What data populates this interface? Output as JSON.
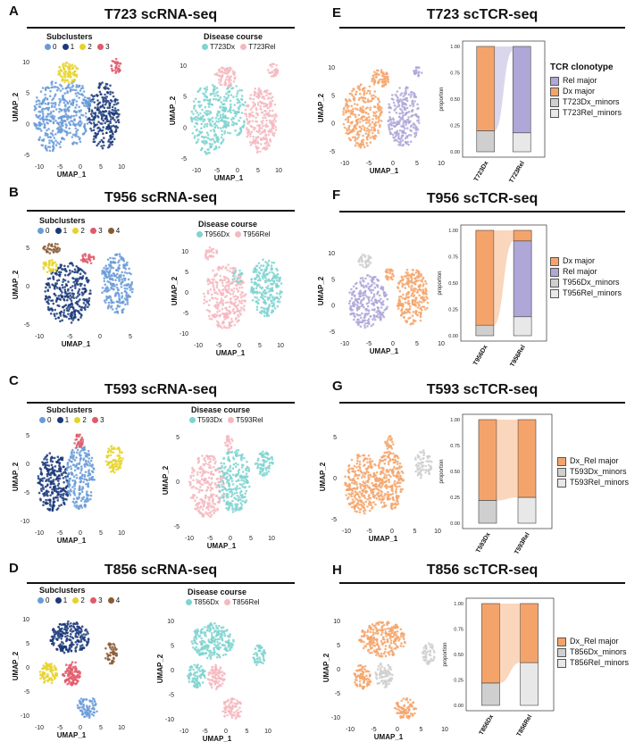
{
  "colors": {
    "c0": "#6a9bd8",
    "c1": "#1b3a7a",
    "c2": "#e6d32a",
    "c3": "#e05a6a",
    "c4": "#8a5a35",
    "dx": "#7fd4d0",
    "rel": "#f5b8c0",
    "tcr_dx": "#f4a46b",
    "tcr_rel": "#aea7d8",
    "minor_dx": "#cfcfcf",
    "minor_rel": "#e8e8e8"
  },
  "axes": {
    "x": "UMAP_1",
    "y": "UMAP_2",
    "proportion": "proportion"
  },
  "panels": {
    "A": {
      "letter": "A",
      "title": "T723 scRNA-seq"
    },
    "B": {
      "letter": "B",
      "title": "T956 scRNA-seq"
    },
    "C": {
      "letter": "C",
      "title": "T593 scRNA-seq"
    },
    "D": {
      "letter": "D",
      "title": "T856 scRNA-seq"
    },
    "E": {
      "letter": "E",
      "title": "T723 scTCR-seq"
    },
    "F": {
      "letter": "F",
      "title": "T956 scTCR-seq"
    },
    "G": {
      "letter": "G",
      "title": "T593 scTCR-seq"
    },
    "H": {
      "letter": "H",
      "title": "T856 scTCR-seq"
    }
  },
  "legends": {
    "subclusters": "Subclusters",
    "disease_course": "Disease course",
    "tcr_clonotype": "TCR clonotype",
    "A_clusters": [
      "0",
      "1",
      "2",
      "3"
    ],
    "B_clusters": [
      "0",
      "1",
      "2",
      "3",
      "4"
    ],
    "C_clusters": [
      "0",
      "1",
      "2",
      "3"
    ],
    "D_clusters": [
      "0",
      "1",
      "2",
      "3",
      "4"
    ],
    "A_course": [
      "T723Dx",
      "T723Rel"
    ],
    "B_course": [
      "T956Dx",
      "T956Rel"
    ],
    "C_course": [
      "T593Dx",
      "T593Rel"
    ],
    "D_course": [
      "T856Dx",
      "T856Rel"
    ],
    "E_tcr": [
      "Rel major",
      "Dx major",
      "T723Dx_minors",
      "T723Rel_minors"
    ],
    "F_tcr": [
      "Dx major",
      "Rel major",
      "T956Dx_minors",
      "T956Rel_minors"
    ],
    "G_tcr": [
      "Dx_Rel major",
      "T593Dx_minors",
      "T593Rel_minors"
    ],
    "H_tcr": [
      "Dx_Rel major",
      "T856Dx_minors",
      "T856Rel_minors"
    ]
  },
  "chart_data": [
    {
      "panel": "E",
      "type": "bar",
      "stacked": true,
      "categories": [
        "T723Dx",
        "T723Rel"
      ],
      "ylabel": "proportion",
      "ylim": [
        0,
        1
      ],
      "yticks": [
        "0.00",
        "0.25",
        "0.50",
        "0.75",
        "1.00"
      ],
      "series": [
        {
          "name": "T723Dx_minors",
          "values": [
            0.2,
            0
          ]
        },
        {
          "name": "T723Rel_minors",
          "values": [
            0,
            0.18
          ]
        },
        {
          "name": "Dx major",
          "values": [
            0.8,
            0
          ]
        },
        {
          "name": "Rel major",
          "values": [
            0,
            0.82
          ]
        }
      ]
    },
    {
      "panel": "F",
      "type": "bar",
      "stacked": true,
      "categories": [
        "T956Dx",
        "T956Rel"
      ],
      "ylabel": "proportion",
      "ylim": [
        0,
        1
      ],
      "yticks": [
        "0.00",
        "0.25",
        "0.50",
        "0.75",
        "1.00"
      ],
      "series": [
        {
          "name": "T956Dx_minors",
          "values": [
            0.1,
            0
          ]
        },
        {
          "name": "T956Rel_minors",
          "values": [
            0,
            0.18
          ]
        },
        {
          "name": "Rel major",
          "values": [
            0,
            0.72
          ]
        },
        {
          "name": "Dx major",
          "values": [
            0.9,
            0.1
          ]
        }
      ]
    },
    {
      "panel": "G",
      "type": "bar",
      "stacked": true,
      "categories": [
        "T593Dx",
        "T593Rel"
      ],
      "ylabel": "proportion",
      "ylim": [
        0,
        1
      ],
      "yticks": [
        "0.00",
        "0.25",
        "0.50",
        "0.75",
        "1.00"
      ],
      "series": [
        {
          "name": "T593Dx_minors",
          "values": [
            0.22,
            0
          ]
        },
        {
          "name": "T593Rel_minors",
          "values": [
            0,
            0.25
          ]
        },
        {
          "name": "Dx_Rel major",
          "values": [
            0.78,
            0.75
          ]
        }
      ]
    },
    {
      "panel": "H",
      "type": "bar",
      "stacked": true,
      "categories": [
        "T856Dx",
        "T856Rel"
      ],
      "ylabel": "proportion",
      "ylim": [
        0,
        1
      ],
      "yticks": [
        "0.00",
        "0.25",
        "0.50",
        "0.75",
        "1.00"
      ],
      "series": [
        {
          "name": "T856Dx_minors",
          "values": [
            0.22,
            0
          ]
        },
        {
          "name": "T856Rel_minors",
          "values": [
            0,
            0.42
          ]
        },
        {
          "name": "Dx_Rel major",
          "values": [
            0.78,
            0.58
          ]
        }
      ]
    }
  ]
}
